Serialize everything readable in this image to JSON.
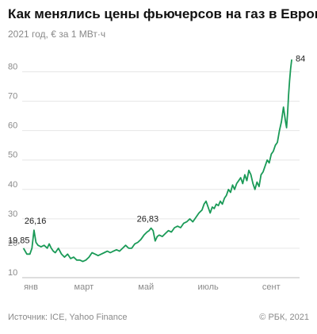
{
  "title": "Как менялись цены фьючерсов на газ в Европе",
  "subtitle": "2021 год, € за 1 МВт·ч",
  "source": "Источник: ICE, Yahoo Finance",
  "copyright": "© РБК, 2021",
  "line_color": "#1a9a57",
  "chart_data": {
    "type": "line",
    "title": "Как менялись цены фьючерсов на газ в Европе",
    "subtitle": "2021 год, € за 1 МВт·ч",
    "xlabel": "",
    "ylabel": "",
    "ylim": [
      10,
      85
    ],
    "yticks": [
      10,
      20,
      30,
      40,
      50,
      60,
      70,
      80
    ],
    "grid": true,
    "x_ticks": [
      {
        "label": "янв",
        "x": 1
      },
      {
        "label": "март",
        "x": 60
      },
      {
        "label": "май",
        "x": 121
      },
      {
        "label": "июль",
        "x": 182
      },
      {
        "label": "сент",
        "x": 244
      }
    ],
    "annotations": [
      {
        "label": "19,85",
        "x": 1,
        "y": 19.85
      },
      {
        "label": "26,16",
        "x": 11,
        "y": 26.16
      },
      {
        "label": "26,83",
        "x": 126,
        "y": 26.83
      },
      {
        "label": "84",
        "x": 264,
        "y": 84
      }
    ],
    "series": [
      {
        "x": [
          1,
          4,
          7,
          9,
          11,
          13,
          15,
          18,
          21,
          24,
          26,
          28,
          30,
          32,
          35,
          38,
          41,
          44,
          47,
          50,
          53,
          56,
          59,
          62,
          65,
          68,
          71,
          74,
          77,
          80,
          83,
          86,
          89,
          92,
          95,
          98,
          101,
          104,
          107,
          110,
          113,
          116,
          119,
          122,
          124,
          126,
          128,
          130,
          132,
          134,
          137,
          140,
          143,
          146,
          149,
          152,
          155,
          158,
          161,
          164,
          167,
          170,
          173,
          176,
          178,
          180,
          182,
          184,
          186,
          188,
          190,
          192,
          194,
          196,
          198,
          200,
          202,
          204,
          206,
          208,
          210,
          212,
          214,
          216,
          218,
          220,
          222,
          224,
          226,
          228,
          230,
          232,
          234,
          236,
          238,
          240,
          242,
          244,
          246,
          248,
          250,
          252,
          254,
          256,
          258,
          259,
          260,
          261,
          262,
          263,
          264
        ],
        "y": [
          19.85,
          18,
          18,
          20,
          26.16,
          22,
          21,
          20.5,
          21,
          20,
          21.5,
          20,
          19,
          18.5,
          20,
          18,
          17,
          18,
          16.5,
          17,
          16,
          16,
          15.5,
          16,
          17,
          18.5,
          18,
          17.5,
          18,
          18.5,
          19,
          18.5,
          19,
          19.5,
          19,
          20,
          21,
          20,
          20,
          21.5,
          22,
          23,
          24.5,
          25.5,
          26,
          26.83,
          26,
          22.5,
          24,
          24.5,
          24,
          25,
          26,
          25.5,
          27,
          27.5,
          27,
          28.5,
          29,
          30,
          29,
          30.5,
          32,
          33,
          35,
          36,
          34,
          32,
          34,
          33.5,
          35,
          34.5,
          36,
          35,
          37,
          38,
          40,
          39,
          41.5,
          40,
          42,
          43,
          44,
          42,
          45,
          43,
          46.5,
          45,
          42,
          40,
          42.5,
          41,
          45,
          46,
          48,
          50,
          49,
          52,
          53,
          55,
          56,
          60,
          63,
          68,
          63,
          61,
          66,
          72,
          77,
          81,
          84
        ]
      }
    ]
  }
}
